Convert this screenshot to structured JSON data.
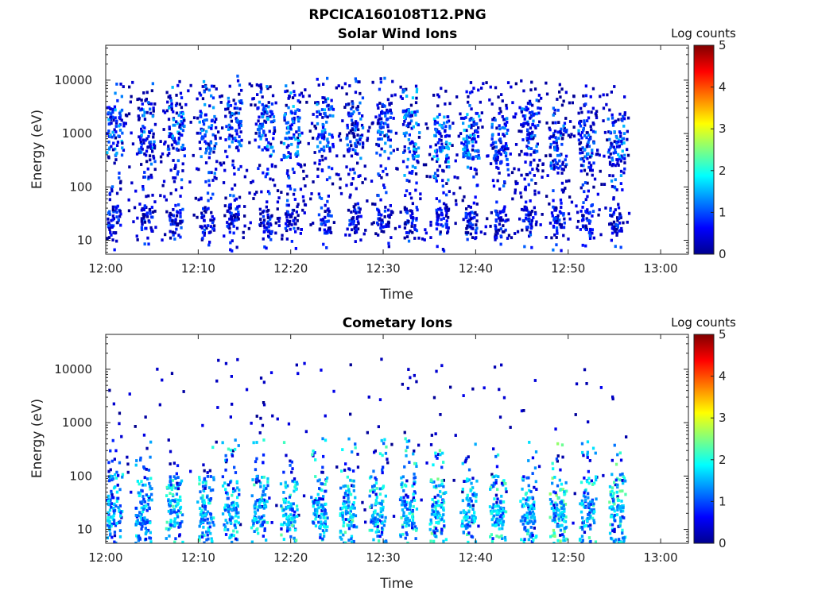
{
  "figure": {
    "title": "RPCICA160108T12.PNG"
  },
  "chart_data": [
    {
      "type": "heatmap",
      "title": "Solar Wind Ions",
      "xlabel": "Time",
      "ylabel": "Energy (eV)",
      "x_ticks": [
        "12:00",
        "12:10",
        "12:20",
        "12:30",
        "12:40",
        "12:50",
        "13:00"
      ],
      "x_range_minutes": [
        0,
        63
      ],
      "y_scale": "log",
      "y_ticks": [
        10,
        100,
        1000,
        10000
      ],
      "y_tick_labels": [
        "10",
        "100",
        "1000",
        "10000"
      ],
      "y_range": [
        5.5,
        45000
      ],
      "colorbar": {
        "label": "Log counts",
        "range": [
          0,
          5
        ],
        "ticks": [
          "0",
          "1",
          "2",
          "3",
          "4",
          "5"
        ],
        "colormap": "jet"
      },
      "data_extent_minutes": [
        0,
        56.5
      ],
      "bursts": [
        {
          "t": 0.8,
          "e": 1100,
          "c": 1.6
        },
        {
          "t": 4.3,
          "e": 1100,
          "c": 1.5
        },
        {
          "t": 7.5,
          "e": 1300,
          "c": 1.6
        },
        {
          "t": 10.9,
          "e": 1200,
          "c": 1.5
        },
        {
          "t": 13.7,
          "e": 1500,
          "c": 1.4
        },
        {
          "t": 17.2,
          "e": 1300,
          "c": 1.7
        },
        {
          "t": 20.0,
          "e": 1000,
          "c": 1.8
        },
        {
          "t": 23.6,
          "e": 1400,
          "c": 1.6
        },
        {
          "t": 26.8,
          "e": 1400,
          "c": 1.4
        },
        {
          "t": 29.9,
          "e": 1400,
          "c": 1.5
        },
        {
          "t": 32.9,
          "e": 1000,
          "c": 1.7
        },
        {
          "t": 36.2,
          "e": 800,
          "c": 1.8
        },
        {
          "t": 39.4,
          "e": 800,
          "c": 1.7
        },
        {
          "t": 42.5,
          "e": 700,
          "c": 1.4
        },
        {
          "t": 45.7,
          "e": 1100,
          "c": 1.5
        },
        {
          "t": 48.8,
          "e": 600,
          "c": 1.4
        },
        {
          "t": 51.9,
          "e": 700,
          "c": 1.5
        },
        {
          "t": 55.1,
          "e": 700,
          "c": 1.6
        }
      ],
      "low_energy_band": {
        "e": 24,
        "c": 1.1
      }
    },
    {
      "type": "heatmap",
      "title": "Cometary Ions",
      "xlabel": "Time",
      "ylabel": "Energy (eV)",
      "x_ticks": [
        "12:00",
        "12:10",
        "12:20",
        "12:30",
        "12:40",
        "12:50",
        "13:00"
      ],
      "x_range_minutes": [
        0,
        63
      ],
      "y_scale": "log",
      "y_ticks": [
        10,
        100,
        1000,
        10000
      ],
      "y_tick_labels": [
        "10",
        "100",
        "1000",
        "10000"
      ],
      "y_range": [
        5.5,
        45000
      ],
      "colorbar": {
        "label": "Log counts",
        "range": [
          0,
          5
        ],
        "ticks": [
          "0",
          "1",
          "2",
          "3",
          "4",
          "5"
        ],
        "colormap": "jet"
      },
      "data_extent_minutes": [
        0,
        56.5
      ],
      "bursts": [
        {
          "t": 0.8,
          "e": 22,
          "c": 2.0
        },
        {
          "t": 4.0,
          "e": 22,
          "c": 2.1
        },
        {
          "t": 7.3,
          "e": 20,
          "c": 2.3
        },
        {
          "t": 10.7,
          "e": 20,
          "c": 2.3
        },
        {
          "t": 13.4,
          "e": 20,
          "c": 2.2
        },
        {
          "t": 16.5,
          "e": 20,
          "c": 2.3
        },
        {
          "t": 19.7,
          "e": 20,
          "c": 2.4
        },
        {
          "t": 23.0,
          "e": 20,
          "c": 2.2
        },
        {
          "t": 26.1,
          "e": 20,
          "c": 2.4
        },
        {
          "t": 29.3,
          "e": 20,
          "c": 2.3
        },
        {
          "t": 32.6,
          "e": 20,
          "c": 2.3
        },
        {
          "t": 35.8,
          "e": 18,
          "c": 2.5
        },
        {
          "t": 39.1,
          "e": 20,
          "c": 2.3
        },
        {
          "t": 42.3,
          "e": 20,
          "c": 2.4
        },
        {
          "t": 45.6,
          "e": 20,
          "c": 2.3
        },
        {
          "t": 48.8,
          "e": 20,
          "c": 2.6
        },
        {
          "t": 52.0,
          "e": 20,
          "c": 2.3
        },
        {
          "t": 55.2,
          "e": 20,
          "c": 2.5
        }
      ],
      "low_energy_band": {
        "e": 20,
        "c": 2.0
      }
    }
  ]
}
